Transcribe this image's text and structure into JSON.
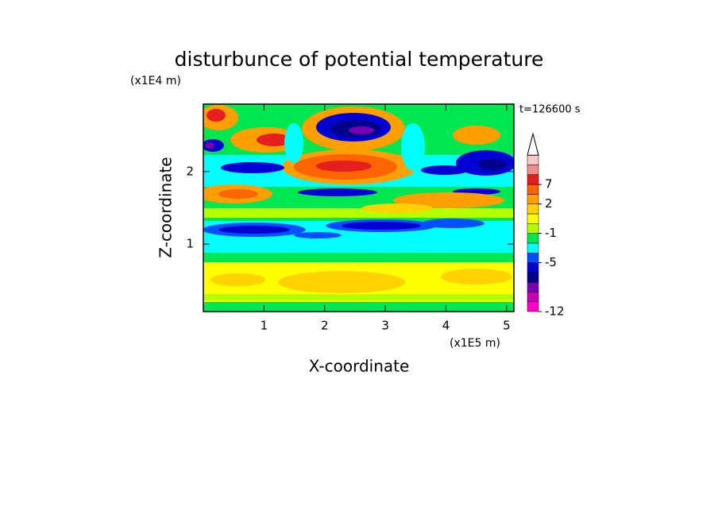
{
  "chart_data": {
    "type": "contour",
    "title": "disturbunce of potential temperature",
    "x_label": "X-coordinate",
    "y_label": "Z-coordinate",
    "x_unit": "(x1E5 m)",
    "y_unit": "(x1E4 m)",
    "time_label": "t=126600 s",
    "xlim": [
      0,
      5.12
    ],
    "ylim": [
      0.07,
      2.93
    ],
    "xticks": [
      1,
      2,
      3,
      4,
      5
    ],
    "yticks": [
      1,
      2
    ],
    "levels": [
      -12,
      -10,
      -8,
      -7,
      -6,
      -5,
      -4,
      -2,
      -1,
      0,
      1,
      2,
      4,
      7,
      9,
      11,
      13
    ],
    "colors": [
      "#ff00c8",
      "#c800b4",
      "#7800b4",
      "#00008c",
      "#0000d2",
      "#0050ff",
      "#00ffff",
      "#00e650",
      "#b4ff00",
      "#ffff00",
      "#ffd200",
      "#ffa000",
      "#ff6400",
      "#e61e1e",
      "#f08c8c",
      "#ffc8c8"
    ],
    "colorbar_ticks": [
      -12,
      -5,
      -1,
      2,
      7
    ],
    "extend": "max"
  }
}
